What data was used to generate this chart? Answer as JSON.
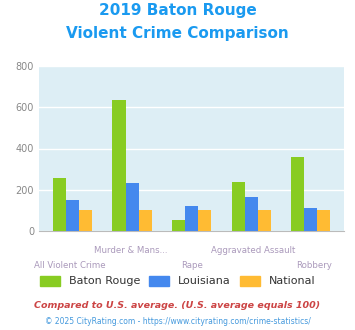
{
  "title_line1": "2019 Baton Rouge",
  "title_line2": "Violent Crime Comparison",
  "title_color": "#1a9af0",
  "categories": [
    "All Violent Crime",
    "Murder & Mans...",
    "Rape",
    "Aggravated Assault",
    "Robbery"
  ],
  "series": {
    "Baton Rouge": [
      255,
      635,
      55,
      240,
      360
    ],
    "Louisiana": [
      150,
      235,
      120,
      165,
      110
    ],
    "National": [
      100,
      100,
      100,
      100,
      100
    ]
  },
  "colors": {
    "Baton Rouge": "#88cc22",
    "Louisiana": "#4488ee",
    "National": "#ffbb33"
  },
  "ylim": [
    0,
    800
  ],
  "yticks": [
    0,
    200,
    400,
    600,
    800
  ],
  "background_color": "#ddeef5",
  "grid_color": "#ffffff",
  "footnote1": "Compared to U.S. average. (U.S. average equals 100)",
  "footnote2": "© 2025 CityRating.com - https://www.cityrating.com/crime-statistics/",
  "footnote1_color": "#cc4444",
  "footnote2_color": "#4499dd",
  "cat_labels_upper": [
    "",
    "Murder & Mans...",
    "",
    "Aggravated Assault",
    ""
  ],
  "cat_labels_lower": [
    "All Violent Crime",
    "",
    "Rape",
    "",
    "Robbery"
  ],
  "label_color": "#aa99bb"
}
